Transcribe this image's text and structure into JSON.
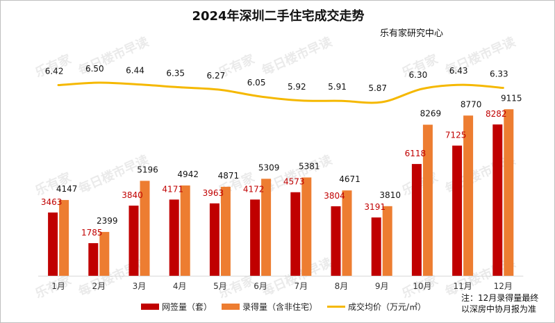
{
  "chart_data": {
    "type": "bar",
    "title": "2024年深圳二手住宅成交走势",
    "subtitle": "乐有家研究中心",
    "categories": [
      "1月",
      "2月",
      "3月",
      "4月",
      "5月",
      "6月",
      "7月",
      "8月",
      "9月",
      "10月",
      "11月",
      "12月"
    ],
    "series": [
      {
        "name": "网签量（套）",
        "type": "bar",
        "color": "#C00000",
        "values": [
          3463,
          1785,
          3840,
          4171,
          3963,
          4172,
          4573,
          3804,
          3191,
          6118,
          7125,
          8282
        ]
      },
      {
        "name": "录得量（含非住宅）",
        "type": "bar",
        "color": "#ED7D31",
        "values": [
          4147,
          2399,
          5196,
          4942,
          4871,
          5309,
          5381,
          4671,
          3810,
          8269,
          8770,
          9115
        ]
      },
      {
        "name": "成交均价（万元/㎡）",
        "type": "line",
        "color": "#F5B800",
        "values": [
          6.42,
          6.5,
          6.44,
          6.35,
          6.27,
          6.05,
          5.92,
          5.91,
          5.87,
          6.3,
          6.43,
          6.33
        ],
        "labels": [
          "6.42",
          "6.50",
          "6.44",
          "6.35",
          "6.27",
          "6.05",
          "5.92",
          "5.91",
          "5.87",
          "6.30",
          "6.43",
          "6.33"
        ]
      }
    ],
    "bar_data_label_colors": [
      "#C00000",
      "#111111"
    ],
    "grid": false,
    "legend": "bottom",
    "annotation": [
      "注：12月录得量最终",
      "以深房中协月报为准"
    ]
  },
  "watermark_text": "每日楼市早读",
  "watermark_logo": "乐有家"
}
